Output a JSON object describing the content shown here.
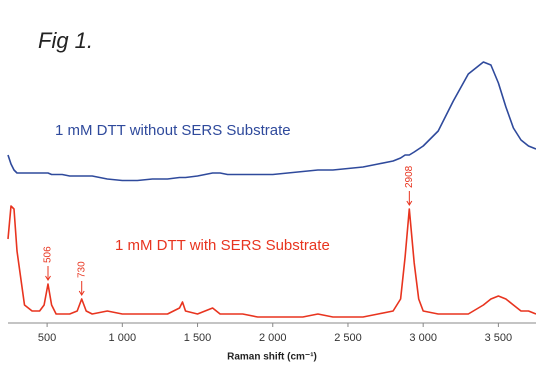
{
  "chart_data": {
    "type": "line",
    "title": "Fig 1.",
    "x_label": "Raman shift (cm⁻¹)",
    "x": [
      240,
      260,
      280,
      300,
      350,
      400,
      450,
      480,
      506,
      530,
      560,
      600,
      650,
      700,
      730,
      760,
      800,
      900,
      1000,
      1100,
      1200,
      1300,
      1380,
      1400,
      1420,
      1500,
      1600,
      1650,
      1700,
      1800,
      1900,
      2000,
      2100,
      2200,
      2300,
      2400,
      2500,
      2600,
      2700,
      2800,
      2850,
      2880,
      2908,
      2940,
      2970,
      3000,
      3100,
      3200,
      3300,
      3400,
      3450,
      3500,
      3550,
      3600,
      3650,
      3700,
      3750
    ],
    "series": [
      {
        "name": "1 mM DTT without SERS Substrate",
        "color": "#2f4a9c",
        "values": [
          56,
          53,
          51,
          50,
          50,
          50,
          50,
          50,
          50,
          49.5,
          49.5,
          49.5,
          49,
          49,
          49,
          49,
          49,
          48,
          47.5,
          47.5,
          48,
          48,
          48.5,
          48.5,
          48.5,
          49,
          50,
          50,
          49.5,
          49.5,
          49.5,
          49.5,
          50,
          50.5,
          51,
          51,
          51.5,
          52,
          53,
          54,
          55,
          56,
          56,
          57,
          58,
          59,
          64,
          74,
          83,
          87,
          86,
          80,
          72,
          65,
          61,
          59,
          58
        ]
      },
      {
        "name": "1 mM DTT with SERS Substrate",
        "color": "#e8341f",
        "values": [
          28,
          39,
          38,
          24,
          6,
          4,
          4,
          6,
          13,
          6,
          3,
          3,
          3,
          4,
          8,
          4,
          3,
          4,
          3,
          3,
          3,
          3,
          5,
          7,
          4,
          3,
          5,
          3,
          3,
          3,
          2,
          2,
          2,
          2,
          3,
          2,
          2,
          2,
          3,
          4,
          8,
          22,
          38,
          20,
          8,
          4,
          3,
          3,
          3,
          6,
          8,
          9,
          8,
          6,
          4,
          4,
          3
        ]
      }
    ],
    "peak_labels": [
      506,
      730,
      2908
    ],
    "xlim": [
      240,
      3750
    ],
    "ylim": [
      0,
      100
    ],
    "xticks": [
      500,
      {
        "value": 1000,
        "label": "1 000"
      },
      {
        "value": 1500,
        "label": "1 500"
      },
      {
        "value": 2000,
        "label": "2 000"
      },
      {
        "value": 2500,
        "label": "2 500"
      },
      {
        "value": 3000,
        "label": "3 000"
      },
      {
        "value": 3500,
        "label": "3 500"
      }
    ]
  }
}
